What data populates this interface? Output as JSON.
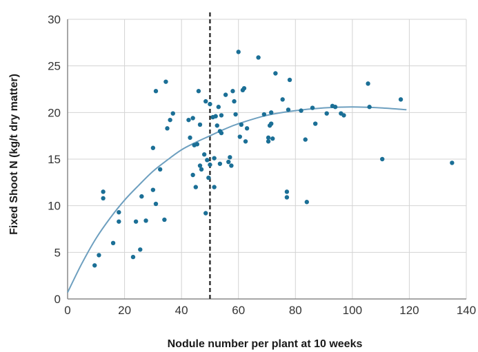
{
  "chart_data": {
    "type": "scatter",
    "title": "",
    "xlabel": "Nodule number per plant at 10 weeks",
    "ylabel": "Fixed Shoot N (kg/t dry matter)",
    "xlim": [
      0,
      140
    ],
    "ylim": [
      0,
      30
    ],
    "xticks": [
      0,
      20,
      40,
      60,
      80,
      100,
      120,
      140
    ],
    "yticks": [
      0,
      5,
      10,
      15,
      20,
      25,
      30
    ],
    "grid": true,
    "legend": "none",
    "colors": {
      "points": "#1b6f96",
      "trend": "#6d9fbf",
      "threshold": "#333333",
      "grid": "#d3d3d3",
      "axis": "#888888"
    },
    "threshold_line": {
      "x": 50,
      "style": "dashed"
    },
    "trend_curve": [
      [
        0,
        0.7
      ],
      [
        5,
        3.8
      ],
      [
        10,
        6.5
      ],
      [
        15,
        8.7
      ],
      [
        20,
        10.6
      ],
      [
        25,
        12.2
      ],
      [
        30,
        13.7
      ],
      [
        35,
        14.9
      ],
      [
        40,
        16.0
      ],
      [
        45,
        16.8
      ],
      [
        50,
        17.5
      ],
      [
        55,
        18.2
      ],
      [
        60,
        18.8
      ],
      [
        70,
        19.7
      ],
      [
        80,
        20.2
      ],
      [
        90,
        20.5
      ],
      [
        100,
        20.6
      ],
      [
        110,
        20.5
      ],
      [
        119,
        20.3
      ]
    ],
    "points": [
      [
        9.5,
        3.6
      ],
      [
        11,
        4.7
      ],
      [
        12.5,
        11.5
      ],
      [
        12.5,
        10.8
      ],
      [
        16,
        6.0
      ],
      [
        18,
        9.3
      ],
      [
        18,
        8.3
      ],
      [
        23,
        4.5
      ],
      [
        24,
        8.3
      ],
      [
        25.5,
        5.3
      ],
      [
        26,
        11.0
      ],
      [
        27.5,
        8.4
      ],
      [
        30,
        16.2
      ],
      [
        30,
        11.7
      ],
      [
        31,
        10.2
      ],
      [
        31,
        22.3
      ],
      [
        32.5,
        13.9
      ],
      [
        34,
        8.5
      ],
      [
        34.5,
        23.3
      ],
      [
        35,
        18.3
      ],
      [
        36,
        19.2
      ],
      [
        37,
        19.9
      ],
      [
        42.5,
        19.2
      ],
      [
        43,
        17.3
      ],
      [
        44,
        19.4
      ],
      [
        44,
        13.3
      ],
      [
        44.5,
        16.5
      ],
      [
        45,
        12.0
      ],
      [
        45.5,
        16.6
      ],
      [
        46,
        22.3
      ],
      [
        46.5,
        14.3
      ],
      [
        46.5,
        18.7
      ],
      [
        47,
        13.9
      ],
      [
        48,
        15.5
      ],
      [
        48.5,
        9.2
      ],
      [
        48.5,
        21.2
      ],
      [
        49,
        14.9
      ],
      [
        49.5,
        13.0
      ],
      [
        50,
        14.4
      ],
      [
        50,
        20.9
      ],
      [
        51,
        19.5
      ],
      [
        51.5,
        15.1
      ],
      [
        51.5,
        12.0
      ],
      [
        52,
        19.6
      ],
      [
        52.5,
        18.6
      ],
      [
        53,
        20.6
      ],
      [
        53.5,
        18.0
      ],
      [
        53.5,
        14.5
      ],
      [
        54,
        19.7
      ],
      [
        54,
        17.8
      ],
      [
        55.5,
        21.9
      ],
      [
        56.5,
        14.7
      ],
      [
        57,
        15.2
      ],
      [
        57.5,
        14.3
      ],
      [
        58,
        22.3
      ],
      [
        58.5,
        21.2
      ],
      [
        59,
        19.8
      ],
      [
        60,
        26.5
      ],
      [
        60.5,
        17.4
      ],
      [
        61,
        18.7
      ],
      [
        61.5,
        22.4
      ],
      [
        62,
        22.6
      ],
      [
        62.5,
        16.9
      ],
      [
        63,
        18.3
      ],
      [
        67,
        25.9
      ],
      [
        69,
        19.8
      ],
      [
        70.5,
        17.3
      ],
      [
        70.5,
        16.9
      ],
      [
        71,
        18.6
      ],
      [
        71.5,
        18.8
      ],
      [
        71.5,
        20.0
      ],
      [
        72,
        17.2
      ],
      [
        73,
        24.2
      ],
      [
        75.5,
        21.4
      ],
      [
        77,
        11.5
      ],
      [
        77,
        10.9
      ],
      [
        77.5,
        20.3
      ],
      [
        78,
        23.5
      ],
      [
        82,
        20.2
      ],
      [
        83.5,
        17.1
      ],
      [
        84,
        10.4
      ],
      [
        86,
        20.5
      ],
      [
        87,
        18.8
      ],
      [
        91,
        19.9
      ],
      [
        93,
        20.7
      ],
      [
        94,
        20.6
      ],
      [
        96,
        19.9
      ],
      [
        97,
        19.7
      ],
      [
        105.5,
        23.1
      ],
      [
        106,
        20.6
      ],
      [
        110.5,
        15.0
      ],
      [
        117,
        21.4
      ],
      [
        135,
        14.6
      ]
    ]
  }
}
